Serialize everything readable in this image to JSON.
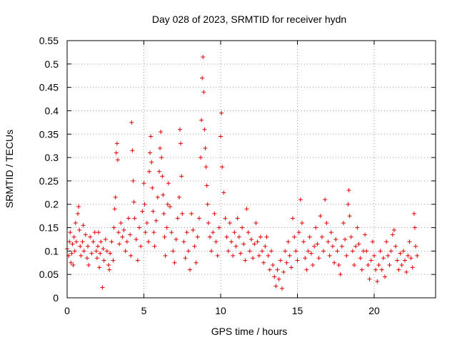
{
  "chart_data": {
    "type": "scatter",
    "title": "Day 028 of 2023, SRMTID for receiver hydn",
    "xlabel": "GPS time / hours",
    "ylabel": "SRMTID / TECUs",
    "xlim": [
      0,
      24
    ],
    "ylim": [
      0,
      0.55
    ],
    "x_ticks": [
      0,
      5,
      10,
      15,
      20
    ],
    "x_tick_labels": [
      "0",
      "5",
      "10",
      "15",
      "20"
    ],
    "y_ticks": [
      0,
      0.05,
      0.1,
      0.15,
      0.2,
      0.25,
      0.3,
      0.35,
      0.4,
      0.45,
      0.5,
      0.55
    ],
    "y_tick_labels": [
      "0",
      "0.05",
      "0.1",
      "0.15",
      "0.2",
      "0.25",
      "0.3",
      "0.35",
      "0.4",
      "0.45",
      "0.5",
      "0.55"
    ],
    "grid": true,
    "marker": "plus",
    "color": "#e00000",
    "series": [
      {
        "name": "hydn",
        "points": [
          [
            0.0,
            0.105
          ],
          [
            0.1,
            0.09
          ],
          [
            0.15,
            0.12
          ],
          [
            0.2,
            0.14
          ],
          [
            0.25,
            0.075
          ],
          [
            0.3,
            0.095
          ],
          [
            0.35,
            0.115
          ],
          [
            0.4,
            0.07
          ],
          [
            0.45,
            0.13
          ],
          [
            0.5,
            0.1
          ],
          [
            0.55,
            0.16
          ],
          [
            0.6,
            0.12
          ],
          [
            0.7,
            0.18
          ],
          [
            0.75,
            0.195
          ],
          [
            0.8,
            0.145
          ],
          [
            0.85,
            0.11
          ],
          [
            0.9,
            0.09
          ],
          [
            1.0,
            0.12
          ],
          [
            1.05,
            0.155
          ],
          [
            1.1,
            0.1
          ],
          [
            1.2,
            0.135
          ],
          [
            1.3,
            0.085
          ],
          [
            1.35,
            0.11
          ],
          [
            1.4,
            0.07
          ],
          [
            1.5,
            0.13
          ],
          [
            1.6,
            0.095
          ],
          [
            1.7,
            0.12
          ],
          [
            1.8,
            0.14
          ],
          [
            1.9,
            0.1
          ],
          [
            1.95,
            0.085
          ],
          [
            2.0,
            0.11
          ],
          [
            2.05,
            0.14
          ],
          [
            2.1,
            0.065
          ],
          [
            2.15,
            0.095
          ],
          [
            2.2,
            0.12
          ],
          [
            2.3,
            0.022
          ],
          [
            2.35,
            0.105
          ],
          [
            2.4,
            0.08
          ],
          [
            2.5,
            0.125
          ],
          [
            2.6,
            0.1
          ],
          [
            2.7,
            0.07
          ],
          [
            2.75,
            0.06
          ],
          [
            2.8,
            0.095
          ],
          [
            2.9,
            0.12
          ],
          [
            3.0,
            0.08
          ],
          [
            3.05,
            0.15
          ],
          [
            3.1,
            0.19
          ],
          [
            3.15,
            0.215
          ],
          [
            3.2,
            0.31
          ],
          [
            3.25,
            0.33
          ],
          [
            3.3,
            0.295
          ],
          [
            3.35,
            0.14
          ],
          [
            3.4,
            0.115
          ],
          [
            3.5,
            0.16
          ],
          [
            3.6,
            0.13
          ],
          [
            3.7,
            0.145
          ],
          [
            3.8,
            0.1
          ],
          [
            3.9,
            0.12
          ],
          [
            4.0,
            0.17
          ],
          [
            4.1,
            0.135
          ],
          [
            4.15,
            0.09
          ],
          [
            4.2,
            0.375
          ],
          [
            4.25,
            0.315
          ],
          [
            4.3,
            0.25
          ],
          [
            4.35,
            0.205
          ],
          [
            4.4,
            0.17
          ],
          [
            4.5,
            0.125
          ],
          [
            4.6,
            0.08
          ],
          [
            4.7,
            0.15
          ],
          [
            4.8,
            0.11
          ],
          [
            4.9,
            0.185
          ],
          [
            5.0,
            0.245
          ],
          [
            5.05,
            0.2
          ],
          [
            5.1,
            0.14
          ],
          [
            5.2,
            0.16
          ],
          [
            5.3,
            0.12
          ],
          [
            5.35,
            0.27
          ],
          [
            5.4,
            0.31
          ],
          [
            5.45,
            0.345
          ],
          [
            5.5,
            0.29
          ],
          [
            5.55,
            0.235
          ],
          [
            5.6,
            0.185
          ],
          [
            5.65,
            0.14
          ],
          [
            5.7,
            0.11
          ],
          [
            5.8,
            0.165
          ],
          [
            5.9,
            0.215
          ],
          [
            6.0,
            0.27
          ],
          [
            6.05,
            0.32
          ],
          [
            6.1,
            0.355
          ],
          [
            6.15,
            0.3
          ],
          [
            6.2,
            0.26
          ],
          [
            6.25,
            0.22
          ],
          [
            6.3,
            0.18
          ],
          [
            6.35,
            0.13
          ],
          [
            6.4,
            0.09
          ],
          [
            6.5,
            0.15
          ],
          [
            6.55,
            0.2
          ],
          [
            6.6,
            0.245
          ],
          [
            6.7,
            0.195
          ],
          [
            6.8,
            0.14
          ],
          [
            6.9,
            0.1
          ],
          [
            7.0,
            0.075
          ],
          [
            7.1,
            0.125
          ],
          [
            7.2,
            0.17
          ],
          [
            7.3,
            0.215
          ],
          [
            7.35,
            0.36
          ],
          [
            7.4,
            0.33
          ],
          [
            7.45,
            0.26
          ],
          [
            7.5,
            0.18
          ],
          [
            7.6,
            0.12
          ],
          [
            7.7,
            0.085
          ],
          [
            7.8,
            0.14
          ],
          [
            7.9,
            0.1
          ],
          [
            8.0,
            0.06
          ],
          [
            8.1,
            0.18
          ],
          [
            8.2,
            0.145
          ],
          [
            8.3,
            0.11
          ],
          [
            8.4,
            0.075
          ],
          [
            8.5,
            0.13
          ],
          [
            8.6,
            0.17
          ],
          [
            8.7,
            0.3
          ],
          [
            8.75,
            0.38
          ],
          [
            8.8,
            0.47
          ],
          [
            8.85,
            0.515
          ],
          [
            8.9,
            0.44
          ],
          [
            8.95,
            0.36
          ],
          [
            9.0,
            0.32
          ],
          [
            9.05,
            0.28
          ],
          [
            9.1,
            0.24
          ],
          [
            9.15,
            0.2
          ],
          [
            9.2,
            0.16
          ],
          [
            9.3,
            0.13
          ],
          [
            9.4,
            0.1
          ],
          [
            9.5,
            0.14
          ],
          [
            9.6,
            0.18
          ],
          [
            9.7,
            0.12
          ],
          [
            9.8,
            0.09
          ],
          [
            9.9,
            0.15
          ],
          [
            10.0,
            0.345
          ],
          [
            10.05,
            0.395
          ],
          [
            10.1,
            0.28
          ],
          [
            10.2,
            0.225
          ],
          [
            10.3,
            0.17
          ],
          [
            10.4,
            0.13
          ],
          [
            10.5,
            0.1
          ],
          [
            10.6,
            0.16
          ],
          [
            10.7,
            0.12
          ],
          [
            10.8,
            0.09
          ],
          [
            10.9,
            0.14
          ],
          [
            11.0,
            0.11
          ],
          [
            11.1,
            0.17
          ],
          [
            11.2,
            0.13
          ],
          [
            11.3,
            0.095
          ],
          [
            11.4,
            0.15
          ],
          [
            11.5,
            0.115
          ],
          [
            11.6,
            0.08
          ],
          [
            11.7,
            0.19
          ],
          [
            11.8,
            0.14
          ],
          [
            11.9,
            0.1
          ],
          [
            12.0,
            0.125
          ],
          [
            12.1,
            0.085
          ],
          [
            12.2,
            0.115
          ],
          [
            12.3,
            0.16
          ],
          [
            12.4,
            0.12
          ],
          [
            12.5,
            0.09
          ],
          [
            12.6,
            0.13
          ],
          [
            12.7,
            0.1
          ],
          [
            12.8,
            0.075
          ],
          [
            12.9,
            0.11
          ],
          [
            13.0,
            0.13
          ],
          [
            13.1,
            0.09
          ],
          [
            13.2,
            0.06
          ],
          [
            13.3,
            0.1
          ],
          [
            13.4,
            0.07
          ],
          [
            13.5,
            0.045
          ],
          [
            13.6,
            0.025
          ],
          [
            13.7,
            0.06
          ],
          [
            13.8,
            0.04
          ],
          [
            13.9,
            0.08
          ],
          [
            14.0,
            0.02
          ],
          [
            14.1,
            0.055
          ],
          [
            14.2,
            0.1
          ],
          [
            14.3,
            0.075
          ],
          [
            14.4,
            0.12
          ],
          [
            14.5,
            0.09
          ],
          [
            14.6,
            0.065
          ],
          [
            14.7,
            0.17
          ],
          [
            14.8,
            0.13
          ],
          [
            14.9,
            0.1
          ],
          [
            15.0,
            0.08
          ],
          [
            15.1,
            0.14
          ],
          [
            15.2,
            0.21
          ],
          [
            15.3,
            0.16
          ],
          [
            15.4,
            0.12
          ],
          [
            15.5,
            0.085
          ],
          [
            15.6,
            0.06
          ],
          [
            15.7,
            0.1
          ],
          [
            15.8,
            0.13
          ],
          [
            15.9,
            0.095
          ],
          [
            16.0,
            0.07
          ],
          [
            16.1,
            0.11
          ],
          [
            16.2,
            0.15
          ],
          [
            16.3,
            0.115
          ],
          [
            16.4,
            0.085
          ],
          [
            16.5,
            0.175
          ],
          [
            16.6,
            0.13
          ],
          [
            16.7,
            0.1
          ],
          [
            16.8,
            0.21
          ],
          [
            16.9,
            0.16
          ],
          [
            17.0,
            0.12
          ],
          [
            17.1,
            0.09
          ],
          [
            17.2,
            0.14
          ],
          [
            17.3,
            0.11
          ],
          [
            17.4,
            0.075
          ],
          [
            17.5,
            0.125
          ],
          [
            17.6,
            0.1
          ],
          [
            17.7,
            0.07
          ],
          [
            17.8,
            0.05
          ],
          [
            17.9,
            0.11
          ],
          [
            18.0,
            0.16
          ],
          [
            18.1,
            0.125
          ],
          [
            18.2,
            0.09
          ],
          [
            18.3,
            0.2
          ],
          [
            18.35,
            0.23
          ],
          [
            18.4,
            0.175
          ],
          [
            18.5,
            0.13
          ],
          [
            18.6,
            0.1
          ],
          [
            18.7,
            0.07
          ],
          [
            18.8,
            0.11
          ],
          [
            18.9,
            0.15
          ],
          [
            19.0,
            0.115
          ],
          [
            19.1,
            0.085
          ],
          [
            19.2,
            0.06
          ],
          [
            19.3,
            0.1
          ],
          [
            19.4,
            0.135
          ],
          [
            19.5,
            0.1
          ],
          [
            19.6,
            0.07
          ],
          [
            19.7,
            0.04
          ],
          [
            19.8,
            0.08
          ],
          [
            19.9,
            0.12
          ],
          [
            20.0,
            0.09
          ],
          [
            20.1,
            0.06
          ],
          [
            20.2,
            0.035
          ],
          [
            20.3,
            0.07
          ],
          [
            20.4,
            0.1
          ],
          [
            20.5,
            0.06
          ],
          [
            20.6,
            0.085
          ],
          [
            20.7,
            0.045
          ],
          [
            20.8,
            0.12
          ],
          [
            20.9,
            0.09
          ],
          [
            21.0,
            0.07
          ],
          [
            21.1,
            0.1
          ],
          [
            21.2,
            0.135
          ],
          [
            21.3,
            0.145
          ],
          [
            21.4,
            0.11
          ],
          [
            21.5,
            0.08
          ],
          [
            21.6,
            0.06
          ],
          [
            21.7,
            0.095
          ],
          [
            21.8,
            0.07
          ],
          [
            21.9,
            0.1
          ],
          [
            22.0,
            0.08
          ],
          [
            22.1,
            0.055
          ],
          [
            22.2,
            0.09
          ],
          [
            22.3,
            0.12
          ],
          [
            22.4,
            0.085
          ],
          [
            22.5,
            0.065
          ],
          [
            22.6,
            0.18
          ],
          [
            22.65,
            0.15
          ],
          [
            22.7,
            0.11
          ],
          [
            22.8,
            0.09
          ]
        ]
      }
    ]
  }
}
